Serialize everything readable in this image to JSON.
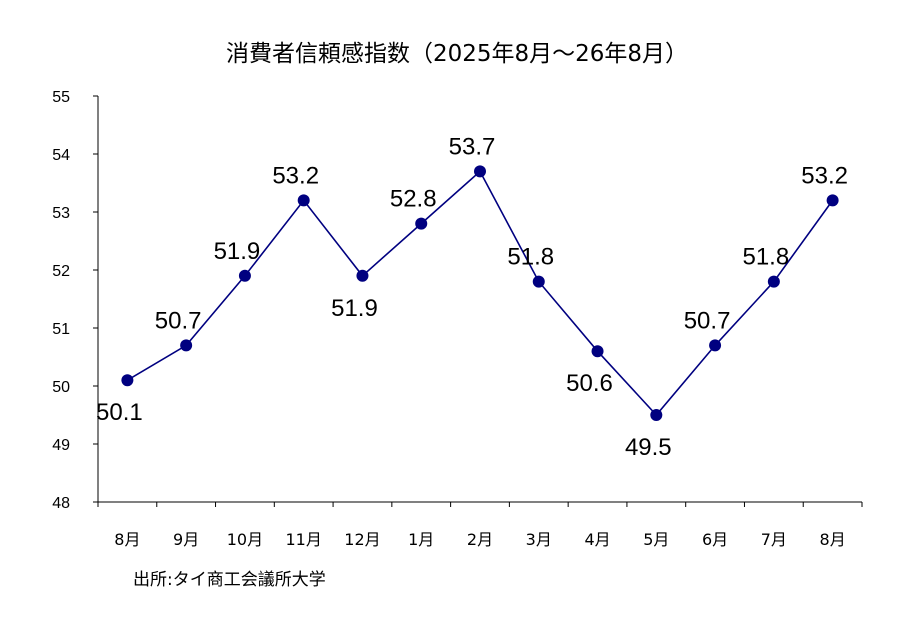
{
  "chart_data": {
    "type": "line",
    "title": "消費者信頼感指数（2025年8月～26年8月）",
    "categories": [
      "8月",
      "9月",
      "10月",
      "11月",
      "12月",
      "1月",
      "2月",
      "3月",
      "4月",
      "5月",
      "6月",
      "7月",
      "8月"
    ],
    "series": [
      {
        "values": [
          50.1,
          50.7,
          51.9,
          53.2,
          51.9,
          52.8,
          53.7,
          51.8,
          50.6,
          49.5,
          50.7,
          51.8,
          53.2
        ]
      }
    ],
    "data_labels": [
      "50.1",
      "50.7",
      "51.9",
      "53.2",
      "51.9",
      "52.8",
      "53.7",
      "51.8",
      "50.6",
      "49.5",
      "50.7",
      "51.8",
      "53.2"
    ],
    "label_positions": [
      "below",
      "above",
      "above",
      "above",
      "below",
      "above",
      "above",
      "above",
      "below",
      "below",
      "above",
      "above",
      "above"
    ],
    "yticks": [
      48,
      49,
      50,
      51,
      52,
      53,
      54,
      55
    ],
    "ylim": [
      48,
      55
    ],
    "xlabel": "",
    "ylabel": "",
    "grid": false,
    "legend": "none",
    "line_color": "#000080",
    "marker_color": "#000080",
    "source": "出所:タイ商工会議所大学"
  }
}
